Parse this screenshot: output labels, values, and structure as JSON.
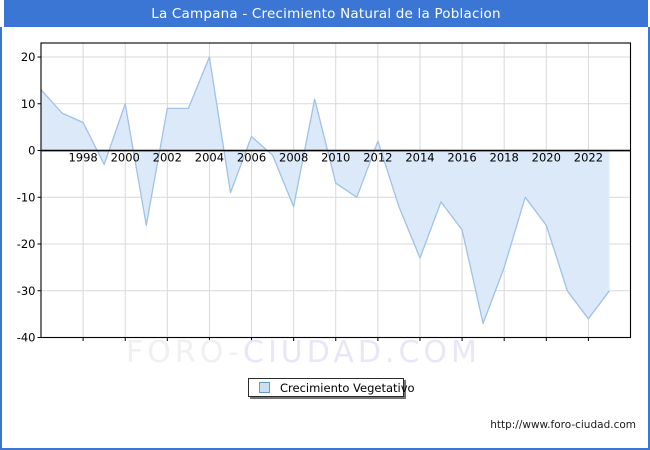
{
  "page": {
    "title": "La Campana - Crecimiento Natural de la Poblacion",
    "watermark": {
      "part1": "FORO-",
      "part2": "CIUDAD.COM"
    },
    "footer_url": "http://www.foro-ciudad.com"
  },
  "legend": {
    "label": "Crecimiento Vegetativo"
  },
  "colors": {
    "accent_blue": "#3b76d5",
    "watermark_gray": "#f0eff1",
    "watermark_lavender": "#e7e7f8"
  },
  "chart_data": {
    "type": "area",
    "title": "La Campana - Crecimiento Natural de la Poblacion",
    "series_name": "Crecimiento Vegetativo",
    "x": [
      1996,
      1997,
      1998,
      1999,
      2000,
      2001,
      2002,
      2003,
      2004,
      2005,
      2006,
      2007,
      2008,
      2009,
      2010,
      2011,
      2012,
      2013,
      2014,
      2015,
      2016,
      2017,
      2018,
      2019,
      2020,
      2021,
      2022,
      2023
    ],
    "values": [
      13,
      8,
      6,
      -3,
      10,
      -16,
      9,
      9,
      20,
      -9,
      3,
      -1,
      -12,
      11,
      -7,
      -10,
      2,
      -12,
      -23,
      -11,
      -17,
      -37,
      -25,
      -10,
      -16,
      -30,
      -36,
      -30
    ],
    "xlabel": "",
    "ylabel": "",
    "xlim": [
      1996,
      2024
    ],
    "ylim": [
      -40,
      23
    ],
    "grid": true,
    "legend_position": "bottom-center",
    "xticks": [
      1998,
      2000,
      2002,
      2004,
      2006,
      2008,
      2010,
      2012,
      2014,
      2016,
      2018,
      2020,
      2022
    ],
    "xtick_labels": [
      "1998",
      "2000",
      "2002",
      "2004",
      "2006",
      "2008",
      "2010",
      "2012",
      "2014",
      "2016",
      "2018",
      "2020",
      "2022"
    ],
    "yticks": [
      20,
      10,
      0,
      -10,
      -20,
      -30,
      -40
    ],
    "ytick_labels": [
      "20",
      "10",
      "0",
      "-10",
      "-20",
      "-30",
      "-40"
    ],
    "colors": {
      "fill": "#dbe9f9",
      "line": "#a0c2e8",
      "grid": "#d9d9d9",
      "axis": "#000000",
      "tick_text": "#000000"
    }
  }
}
